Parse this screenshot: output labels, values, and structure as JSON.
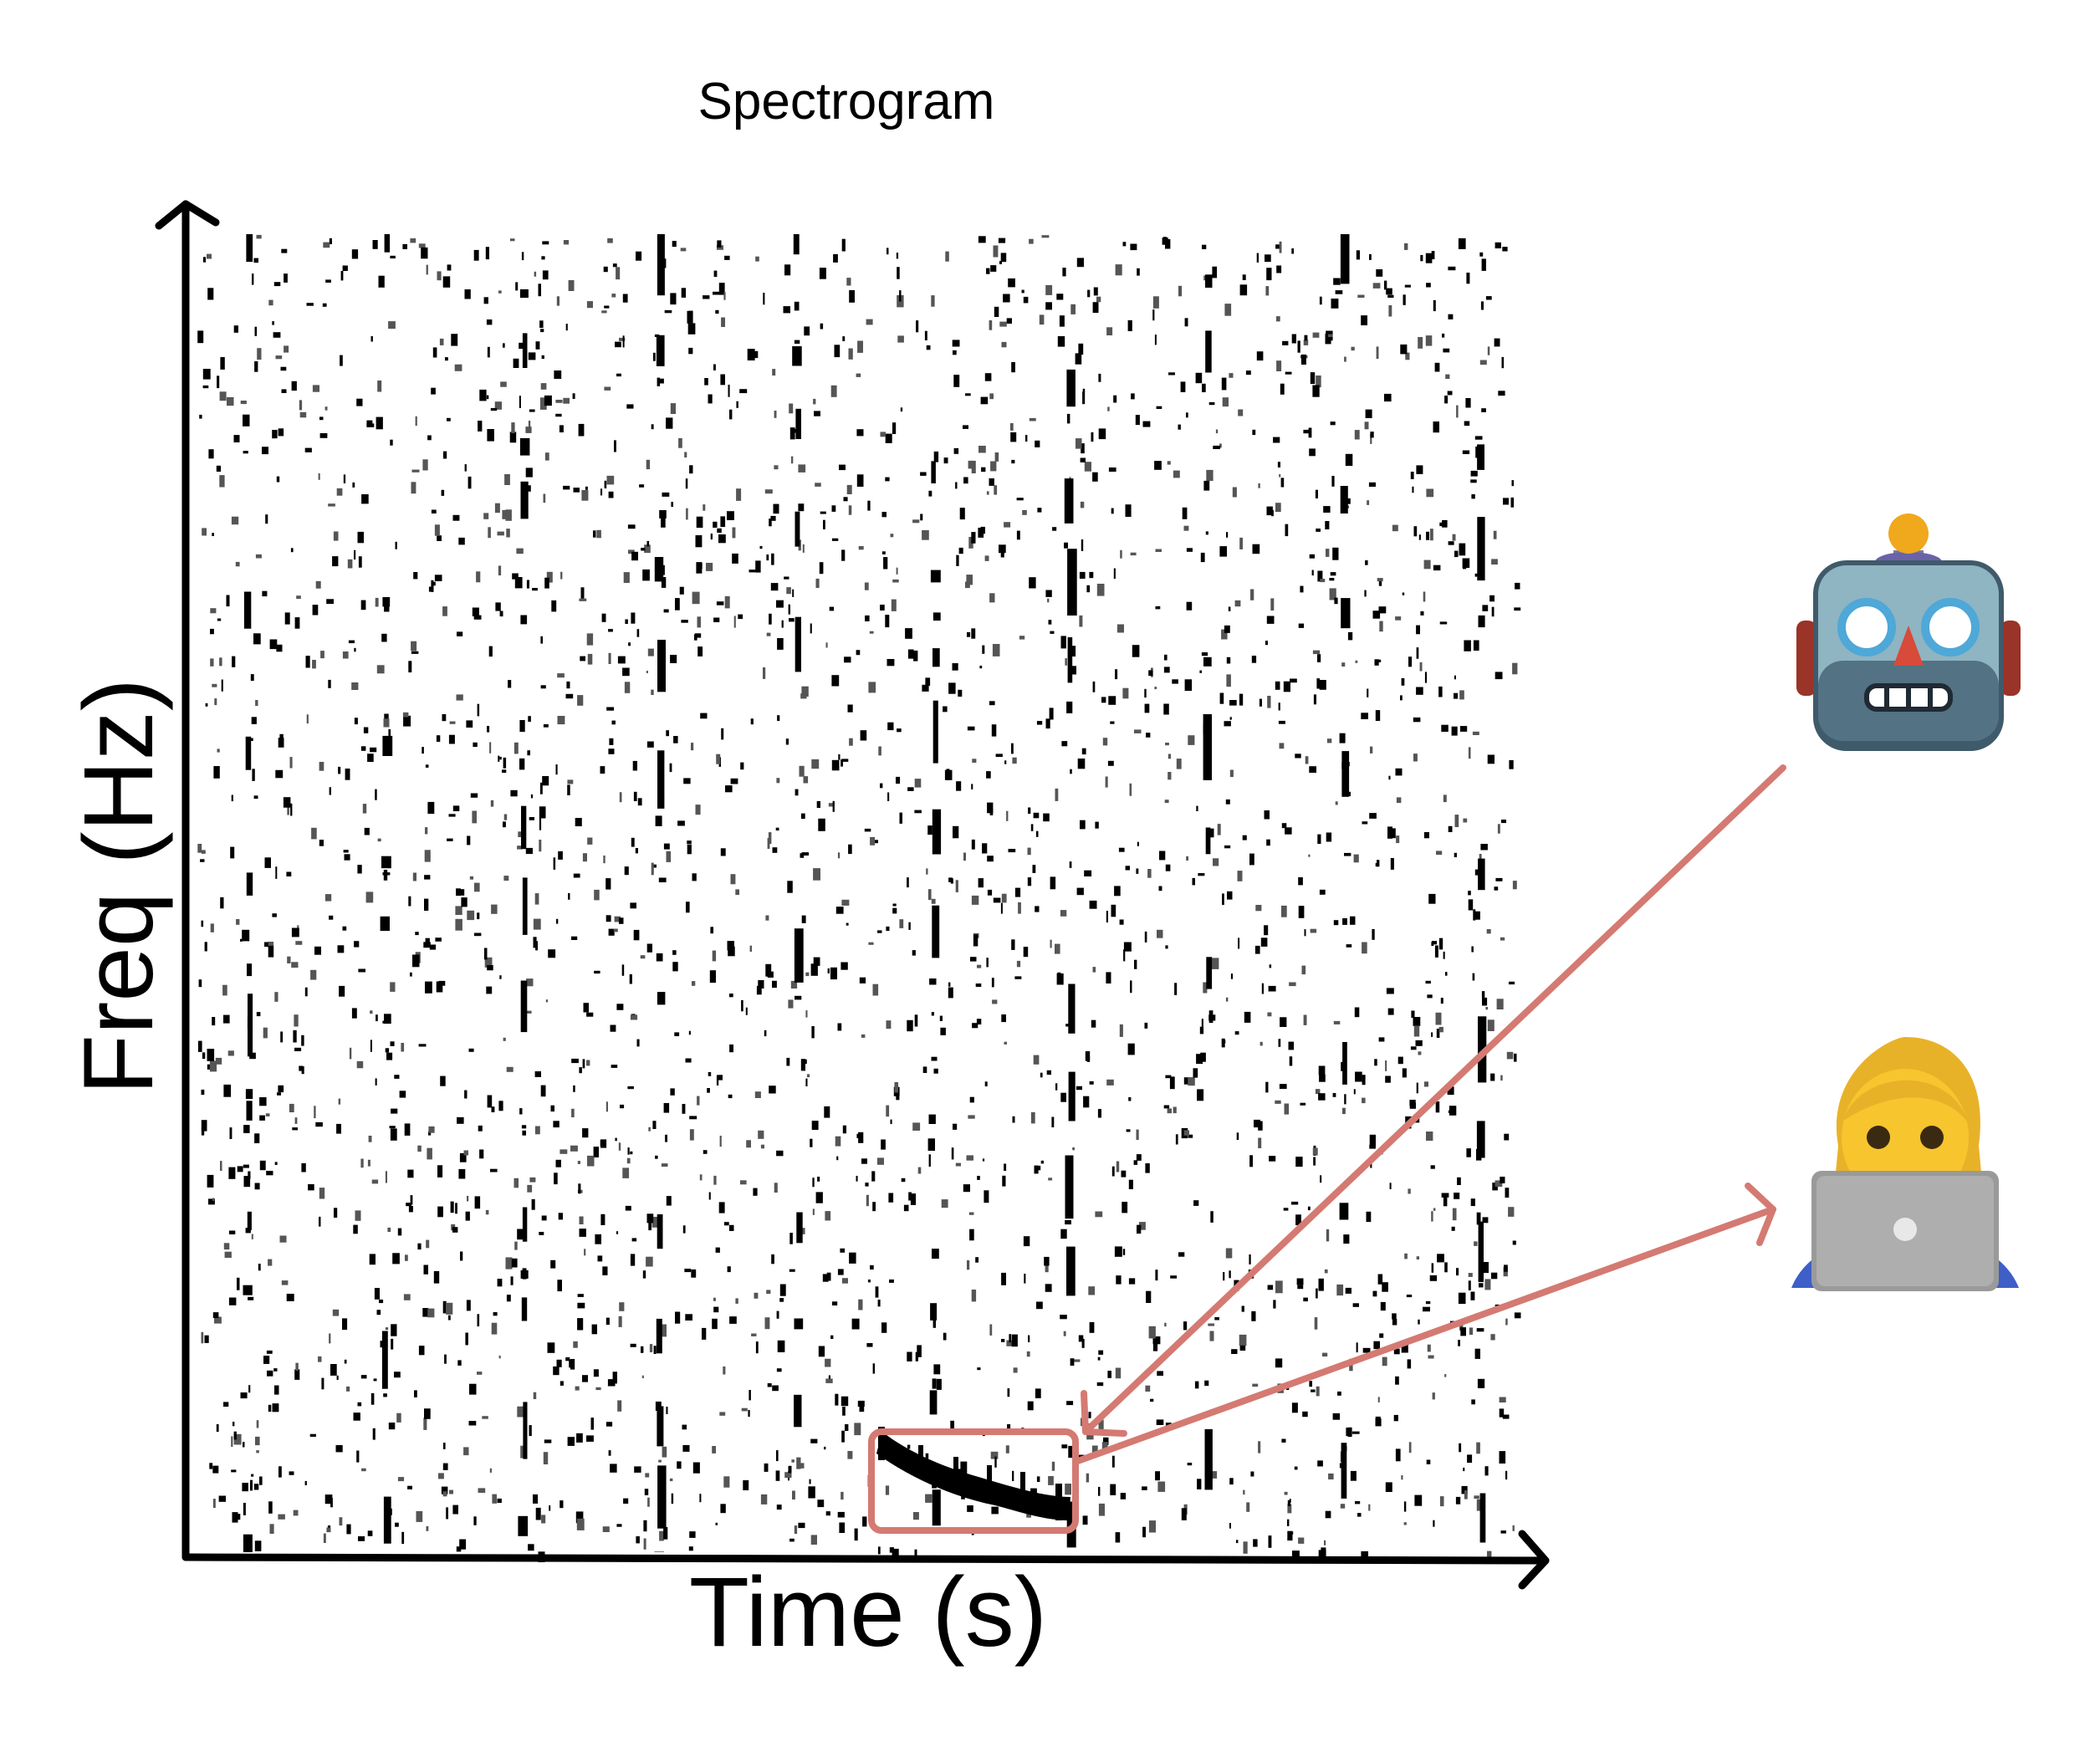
{
  "title": "Spectrogram",
  "xlabel": "Time (s)",
  "ylabel": "Freq (Hz)",
  "colors": {
    "ink": "#000000",
    "annotation": "#d47a72",
    "background": "#ffffff"
  },
  "annotation": {
    "box_label": "highlighted-call"
  },
  "agents": [
    {
      "name": "robot",
      "icon": "robot-icon"
    },
    {
      "name": "human",
      "icon": "woman-with-laptop-icon"
    }
  ]
}
